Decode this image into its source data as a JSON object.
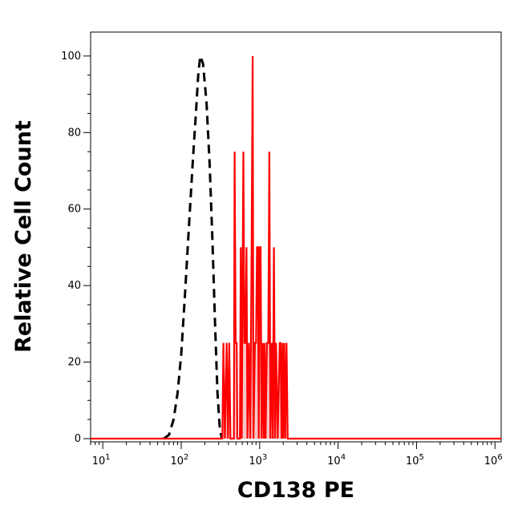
{
  "chart_data": {
    "type": "line",
    "title": "",
    "xlabel": "CD138 PE",
    "ylabel": "Relative Cell Count",
    "x_scale": "log",
    "xlim": [
      7,
      1200000
    ],
    "ylim": [
      0,
      105
    ],
    "x_ticks": [
      {
        "base": "10",
        "exp": "1",
        "value": 10
      },
      {
        "base": "10",
        "exp": "2",
        "value": 100
      },
      {
        "base": "10",
        "exp": "3",
        "value": 1000
      },
      {
        "base": "10",
        "exp": "4",
        "value": 10000
      },
      {
        "base": "10",
        "exp": "5",
        "value": 100000
      },
      {
        "base": "10",
        "exp": "6",
        "value": 1000000
      }
    ],
    "y_ticks": [
      "0",
      "20",
      "40",
      "60",
      "80",
      "100"
    ],
    "y_tick_values": [
      0,
      20,
      40,
      60,
      80,
      100
    ],
    "grid": false,
    "legend": "none",
    "series": [
      {
        "style": "dashed",
        "color": "#000000",
        "points": [
          [
            60,
            0
          ],
          [
            70,
            1
          ],
          [
            80,
            5
          ],
          [
            90,
            12
          ],
          [
            100,
            22
          ],
          [
            112,
            38
          ],
          [
            125,
            55
          ],
          [
            140,
            72
          ],
          [
            155,
            86
          ],
          [
            165,
            95
          ],
          [
            175,
            100
          ],
          [
            190,
            98
          ],
          [
            210,
            88
          ],
          [
            230,
            72
          ],
          [
            250,
            52
          ],
          [
            270,
            30
          ],
          [
            290,
            12
          ],
          [
            310,
            3
          ],
          [
            330,
            0
          ]
        ]
      },
      {
        "style": "solid-filled",
        "color": "#ff0000",
        "fill": "#f5c6c6",
        "points": [
          [
            7,
            0
          ],
          [
            335,
            0
          ],
          [
            345,
            25
          ],
          [
            360,
            0
          ],
          [
            380,
            25
          ],
          [
            395,
            0
          ],
          [
            410,
            25
          ],
          [
            425,
            0
          ],
          [
            470,
            0
          ],
          [
            480,
            75
          ],
          [
            495,
            25
          ],
          [
            510,
            25
          ],
          [
            520,
            0
          ],
          [
            560,
            0
          ],
          [
            575,
            50
          ],
          [
            590,
            0
          ],
          [
            620,
            75
          ],
          [
            640,
            25
          ],
          [
            660,
            25
          ],
          [
            680,
            50
          ],
          [
            700,
            0
          ],
          [
            730,
            25
          ],
          [
            760,
            0
          ],
          [
            790,
            50
          ],
          [
            815,
            100
          ],
          [
            835,
            0
          ],
          [
            870,
            25
          ],
          [
            900,
            25
          ],
          [
            925,
            50
          ],
          [
            950,
            50
          ],
          [
            975,
            0
          ],
          [
            1000,
            50
          ],
          [
            1030,
            50
          ],
          [
            1060,
            0
          ],
          [
            1100,
            25
          ],
          [
            1130,
            0
          ],
          [
            1160,
            25
          ],
          [
            1190,
            0
          ],
          [
            1240,
            25
          ],
          [
            1290,
            25
          ],
          [
            1330,
            75
          ],
          [
            1370,
            0
          ],
          [
            1420,
            25
          ],
          [
            1470,
            0
          ],
          [
            1520,
            50
          ],
          [
            1570,
            0
          ],
          [
            1620,
            25
          ],
          [
            1700,
            0
          ],
          [
            1800,
            25
          ],
          [
            1850,
            25
          ],
          [
            1900,
            0
          ],
          [
            1960,
            25
          ],
          [
            2000,
            0
          ],
          [
            2060,
            25
          ],
          [
            2120,
            0
          ],
          [
            2200,
            25
          ],
          [
            2280,
            0
          ],
          [
            1000000,
            0
          ],
          [
            1200000,
            0
          ]
        ]
      }
    ]
  }
}
